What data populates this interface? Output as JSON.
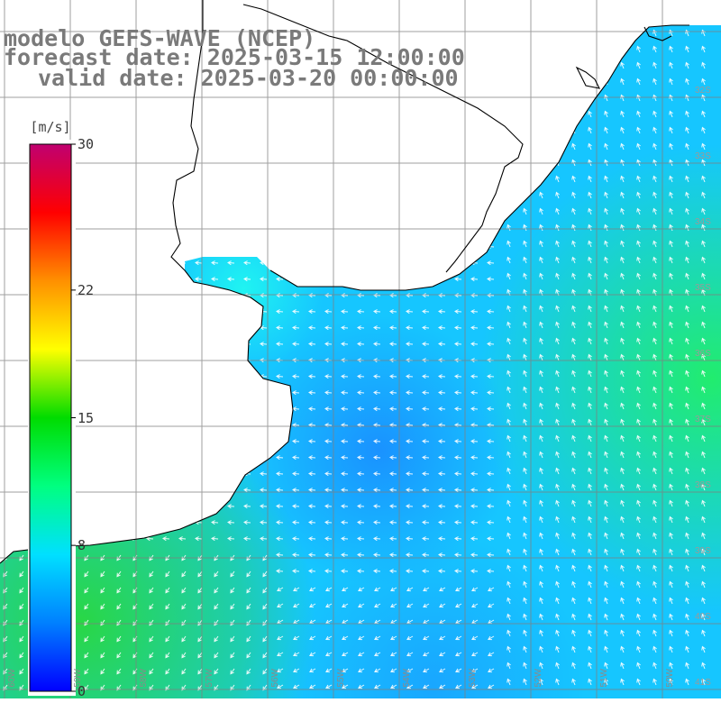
{
  "title": {
    "model": "modelo GEFS-WAVE (NCEP)",
    "forecast": "forecast date: 2025-03-15 12:00:00",
    "valid": "valid date: 2025-03-20 00:00:00"
  },
  "colorbar": {
    "unit": "[m/s]",
    "min": 0,
    "max": 30,
    "ticks": [
      "30",
      "22",
      "15",
      "8",
      "0"
    ],
    "colors": [
      "#0000ff",
      "#0080ff",
      "#00e0ff",
      "#00ff80",
      "#00dc00",
      "#ffff00",
      "#ff9000",
      "#ff0000",
      "#c00070"
    ]
  },
  "grid": {
    "lat_labels": [
      "32S",
      "33S",
      "34S",
      "35S",
      "36S",
      "37S",
      "38S",
      "39S",
      "40S",
      "41S"
    ],
    "lon_labels": [
      "60W",
      "59W",
      "58W",
      "57W",
      "56W",
      "55W",
      "54W",
      "53W",
      "52W",
      "51W",
      "50W"
    ]
  },
  "map_data": {
    "field": "wind speed (colour) and wind direction (arrows)",
    "regions": [
      {
        "area": "offshore east (Brazil coast)",
        "speed_ms": 11
      },
      {
        "area": "Rio de la Plata estuary",
        "speed_ms": 8
      },
      {
        "area": "central shelf",
        "speed_ms": 5
      },
      {
        "area": "southwest (Argentina coast)",
        "speed_ms": 12
      },
      {
        "area": "south-central",
        "speed_ms": 6
      }
    ],
    "prevailing_arrow_direction": "toward west / northwest"
  }
}
